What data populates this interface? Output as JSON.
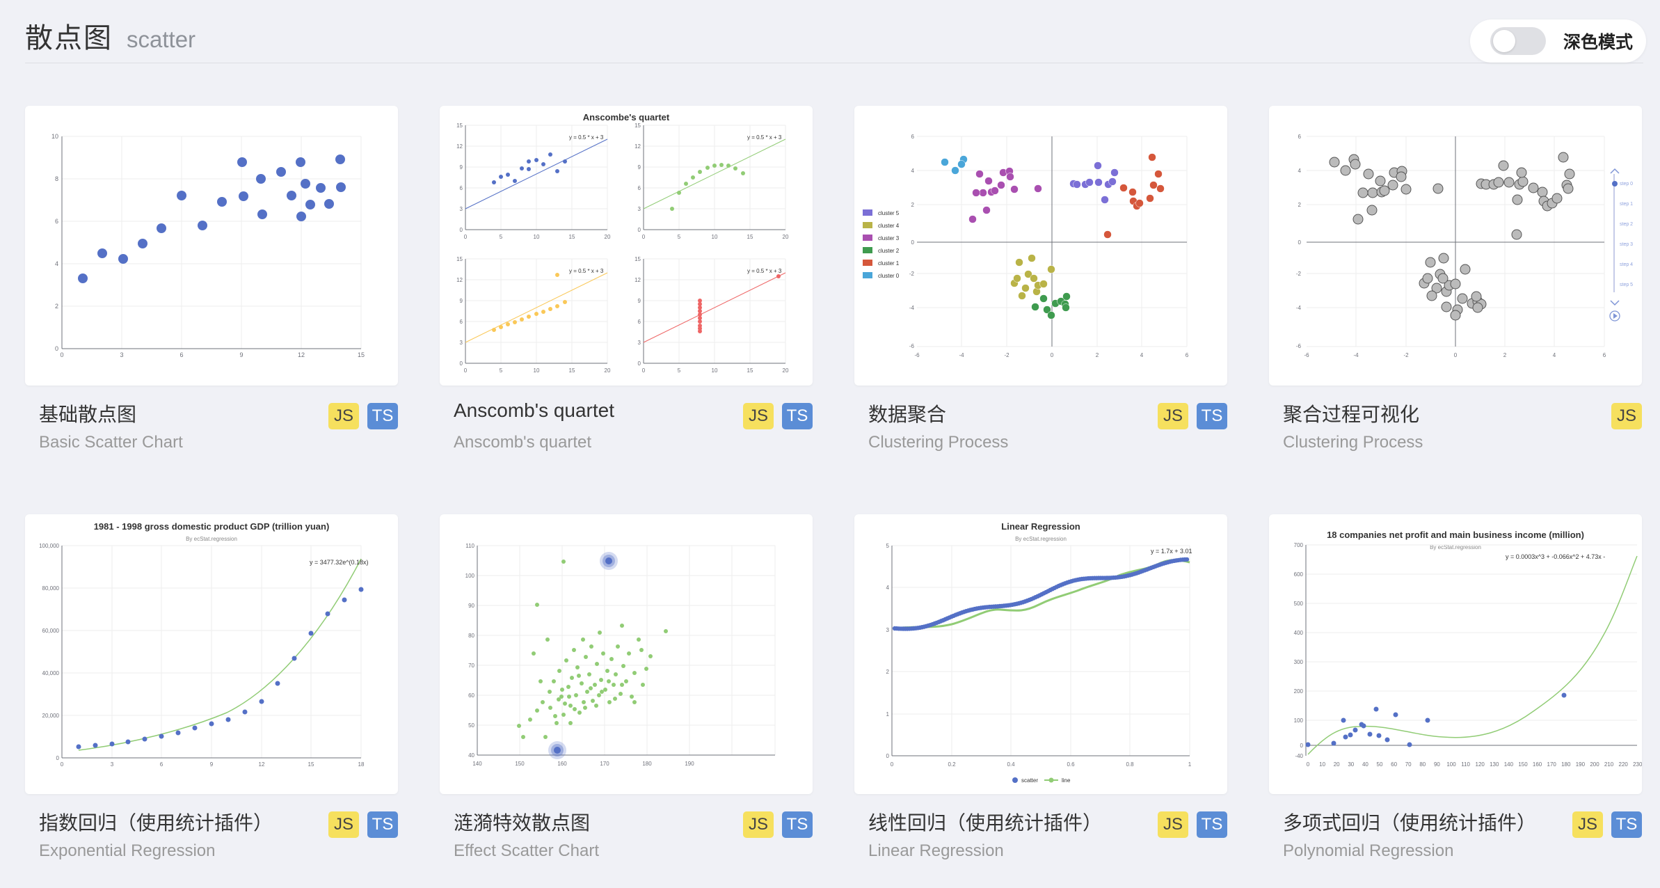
{
  "header": {
    "title": "散点图",
    "subtitle": "scatter"
  },
  "dark_mode": {
    "label": "深色模式",
    "enabled": false
  },
  "badges": {
    "js": "JS",
    "ts": "TS"
  },
  "cards": [
    {
      "title": "基础散点图",
      "subtitle": "Basic Scatter Chart",
      "js": true,
      "ts": true
    },
    {
      "title": "Anscomb's quartet",
      "subtitle": "Anscomb's quartet",
      "js": true,
      "ts": true
    },
    {
      "title": "数据聚合",
      "subtitle": "Clustering Process",
      "js": true,
      "ts": true
    },
    {
      "title": "聚合过程可视化",
      "subtitle": "Clustering Process",
      "js": true,
      "ts": false
    },
    {
      "title": "指数回归（使用统计插件）",
      "subtitle": "Exponential Regression",
      "js": true,
      "ts": true
    },
    {
      "title": "涟漪特效散点图",
      "subtitle": "Effect Scatter Chart",
      "js": true,
      "ts": true
    },
    {
      "title": "线性回归（使用统计插件）",
      "subtitle": "Linear Regression",
      "js": true,
      "ts": true
    },
    {
      "title": "多项式回归（使用统计插件）",
      "subtitle": "Polynomial Regression",
      "js": true,
      "ts": true
    }
  ],
  "thumbs": {
    "anscombe": {
      "title": "Anscombe's quartet",
      "formula": "y = 0.5 * x + 3"
    },
    "cluster": {
      "legend": [
        "cluster 5",
        "cluster 4",
        "cluster 3",
        "cluster 2",
        "cluster 1",
        "cluster 0"
      ]
    },
    "steps": [
      "step 0",
      "step 1",
      "step 2",
      "step 3",
      "step 4",
      "step 5"
    ],
    "expo": {
      "title": "1981 - 1998 gross domestic product GDP (trillion yuan)",
      "subtitle": "By ecStat.regression",
      "formula": "y = 3477.32e^(0.18x)"
    },
    "linear": {
      "title": "Linear Regression",
      "subtitle": "By ecStat.regression",
      "formula": "y = 1.7x + 3.01",
      "legend": [
        "scatter",
        "line"
      ]
    },
    "poly": {
      "title": "18 companies net profit and main business income (million)",
      "subtitle": "By ecStat.regression",
      "formula": "y = 0.0003x^3 + -0.066x^2 + 4.73x -"
    }
  },
  "colors": {
    "blue": "#5470c6",
    "green": "#91cc75",
    "yellow": "#fac858",
    "red": "#ee6666",
    "teal": "#73c0de",
    "purple": "#9a60b4",
    "slate": "#5b8dd6"
  }
}
